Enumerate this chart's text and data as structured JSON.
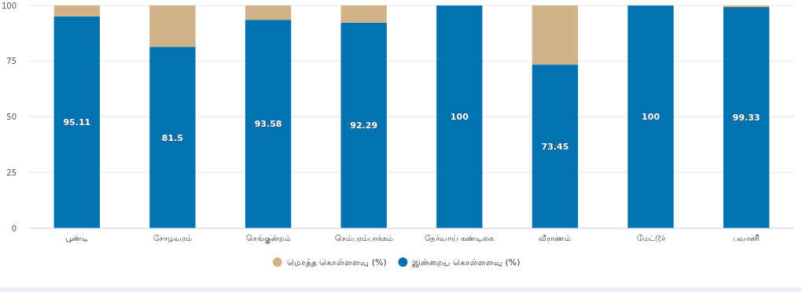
{
  "chart_data": {
    "type": "bar",
    "stacked": true,
    "categories": [
      "பூண்டி",
      "சோழவரம்",
      "செங்குன்றம்",
      "செம்பரம்பாக்கம்",
      "தேர்வாய் கண்டிகை",
      "வீராணம்",
      "மேட்டூர்",
      "பவானி"
    ],
    "series": [
      {
        "name": "இன்றைய கொள்ளளவு (%)",
        "color": "#0073b0",
        "values": [
          95.11,
          81.5,
          93.58,
          92.29,
          100,
          73.45,
          100,
          99.33
        ],
        "value_labels": [
          "95.11",
          "81.5",
          "93.58",
          "92.29",
          "100",
          "73.45",
          "100",
          "99.33"
        ]
      },
      {
        "name": "மொத்த கொள்ளளவு (%)",
        "color": "#d1b38a",
        "values": [
          4.89,
          18.5,
          6.42,
          7.71,
          0,
          26.55,
          0,
          0.67
        ]
      }
    ],
    "ylim": [
      0,
      100
    ],
    "yticks": [
      0,
      25,
      50,
      75,
      100
    ],
    "grid": "y",
    "legend": "bottom"
  }
}
